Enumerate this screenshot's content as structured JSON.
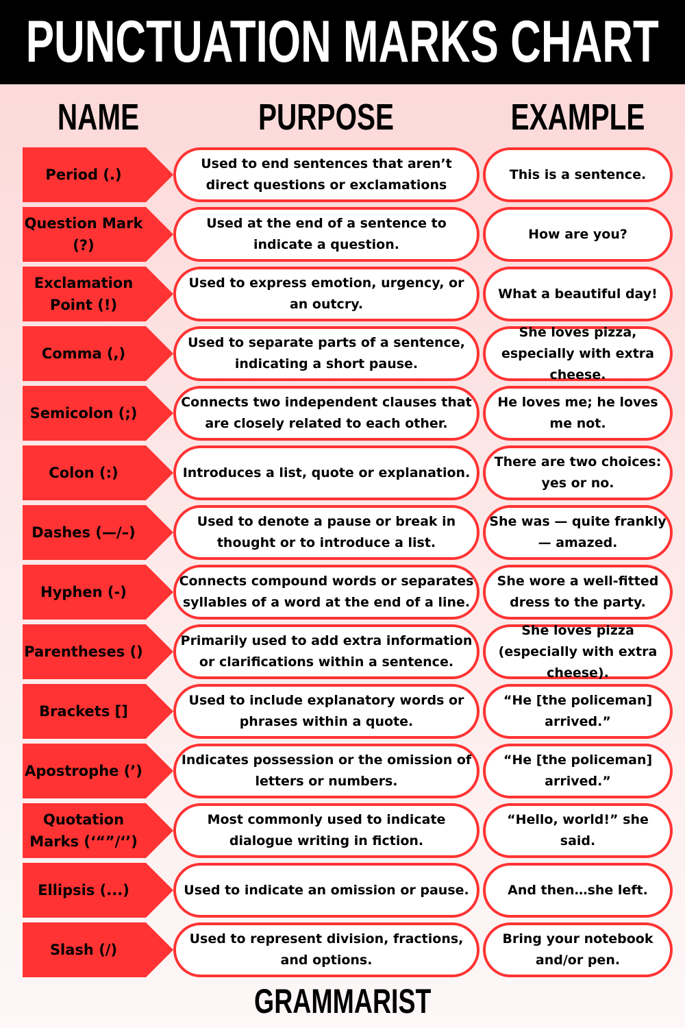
{
  "title": "PUNCTUATION MARKS CHART",
  "columns": {
    "name": "NAME",
    "purpose": "PURPOSE",
    "example": "EXAMPLE"
  },
  "colors": {
    "accent": "#ff3333",
    "header_bg": "#000000"
  },
  "rows": [
    {
      "name": "Period (.)",
      "purpose": "Used to end sentences that aren’t direct questions or exclamations",
      "example": "This is a sentence."
    },
    {
      "name": "Question Mark (?)",
      "purpose": "Used at the end of a sentence to indicate a question.",
      "example": "How are you?"
    },
    {
      "name": "Exclamation Point (!)",
      "purpose": "Used to express emotion, urgency, or an outcry.",
      "example": "What a beautiful day!"
    },
    {
      "name": "Comma (,)",
      "purpose": "Used to separate parts of a sentence, indicating a short pause.",
      "example": "She loves pizza, especially with extra cheese."
    },
    {
      "name": "Semicolon (;)",
      "purpose": "Connects two independent clauses that are closely related to each other.",
      "example": "He loves me; he loves me not."
    },
    {
      "name": "Colon (:)",
      "purpose": "Introduces a list, quote or explanation.",
      "example": "There are two choices: yes or no."
    },
    {
      "name": "Dashes (—/–)",
      "purpose": "Used to denote a pause or break in thought or to introduce a list.",
      "example": "She was — quite frankly — amazed."
    },
    {
      "name": "Hyphen (-)",
      "purpose": "Connects compound words or separates syllables of a word at the end of a line.",
      "example": "She wore a well-fitted dress to the party."
    },
    {
      "name": "Parentheses ()",
      "purpose": "Primarily used to add extra information or clarifications within a sentence.",
      "example": "She loves pizza (especially with extra cheese)."
    },
    {
      "name": "Brackets []",
      "purpose": "Used to include explanatory words or phrases within a quote.",
      "example": "“He [the policeman] arrived.”"
    },
    {
      "name": "Apostrophe (’)",
      "purpose": "Indicates possession or the omission of letters or numbers.",
      "example": "“He [the policeman] arrived.”"
    },
    {
      "name": "Quotation Marks (‘“”/‘’)",
      "purpose": "Most commonly used to indicate dialogue writing in fiction.",
      "example": "“Hello, world!” she said."
    },
    {
      "name": "Ellipsis (...)",
      "purpose": "Used to indicate an omission or pause.",
      "example": "And then…she left."
    },
    {
      "name": "Slash (/)",
      "purpose": "Used to represent division, fractions, and options.",
      "example": "Bring your notebook and/or pen."
    }
  ],
  "footer": "GRAMMARIST"
}
